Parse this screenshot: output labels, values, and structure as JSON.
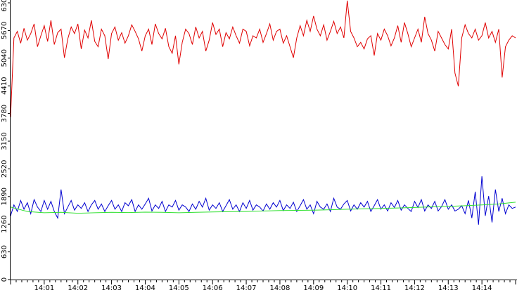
{
  "chart_data": {
    "type": "line",
    "title": "",
    "xlabel": "",
    "ylabel": "",
    "ylim": [
      0,
      6300
    ],
    "grid": false,
    "legend": "none",
    "y_ticks": [
      "0",
      "630",
      "1260",
      "1890",
      "2520",
      "3150",
      "3780",
      "4410",
      "5040",
      "5670",
      "6300"
    ],
    "x_ticks": [
      "14:01",
      "14:02",
      "14:03",
      "14:04",
      "14:05",
      "14:06",
      "14:07",
      "14:08",
      "14:09",
      "14:10",
      "14:11",
      "14:12",
      "14:13",
      "14:14"
    ],
    "x_range_minutes": [
      0.0,
      15.0
    ],
    "series": [
      {
        "color": "#e00000",
        "x": [
          0.0,
          0.1,
          0.2,
          0.3,
          0.4,
          0.5,
          0.6,
          0.7,
          0.8,
          0.9,
          1.0,
          1.1,
          1.2,
          1.3,
          1.4,
          1.5,
          1.6,
          1.7,
          1.8,
          1.9,
          2.0,
          2.1,
          2.2,
          2.3,
          2.4,
          2.5,
          2.6,
          2.7,
          2.8,
          2.9,
          3.0,
          3.1,
          3.2,
          3.3,
          3.4,
          3.5,
          3.6,
          3.7,
          3.8,
          3.9,
          4.0,
          4.1,
          4.2,
          4.3,
          4.4,
          4.5,
          4.6,
          4.7,
          4.8,
          4.9,
          5.0,
          5.1,
          5.2,
          5.3,
          5.4,
          5.5,
          5.6,
          5.7,
          5.8,
          5.9,
          6.0,
          6.1,
          6.2,
          6.3,
          6.4,
          6.5,
          6.6,
          6.7,
          6.8,
          6.9,
          7.0,
          7.1,
          7.2,
          7.3,
          7.4,
          7.5,
          7.6,
          7.7,
          7.8,
          7.9,
          8.0,
          8.1,
          8.2,
          8.3,
          8.4,
          8.5,
          8.6,
          8.7,
          8.8,
          8.9,
          9.0,
          9.1,
          9.2,
          9.3,
          9.4,
          9.5,
          9.6,
          9.7,
          9.8,
          9.9,
          10.0,
          10.1,
          10.2,
          10.3,
          10.4,
          10.5,
          10.6,
          10.7,
          10.8,
          10.9,
          11.0,
          11.1,
          11.2,
          11.3,
          11.4,
          11.5,
          11.6,
          11.7,
          11.8,
          11.9,
          12.0,
          12.1,
          12.2,
          12.3,
          12.4,
          12.5,
          12.6,
          12.7,
          12.8,
          12.9,
          13.0,
          13.1,
          13.2,
          13.3,
          13.4,
          13.5,
          13.6,
          13.7,
          13.8,
          13.9,
          14.0,
          14.1,
          14.2,
          14.3,
          14.4,
          14.5,
          14.6,
          14.7,
          14.8,
          14.9,
          15.0
        ],
        "values": [
          3700,
          5500,
          5650,
          5380,
          5720,
          5450,
          5600,
          5820,
          5300,
          5550,
          5780,
          5420,
          5900,
          5350,
          5620,
          5700,
          5050,
          5480,
          5750,
          5600,
          5820,
          5250,
          5680,
          5500,
          5900,
          5420,
          5300,
          5700,
          5550,
          5020,
          5600,
          5750,
          5450,
          5620,
          5380,
          5550,
          5800,
          5650,
          5480,
          5200,
          5550,
          5700,
          5350,
          5820,
          5600,
          5480,
          5720,
          5300,
          5150,
          5550,
          4900,
          5400,
          5700,
          5600,
          5350,
          5750,
          5500,
          5650,
          5200,
          5450,
          5850,
          5580,
          5700,
          5300,
          5620,
          5480,
          5750,
          5550,
          5380,
          5700,
          5650,
          5320,
          5550,
          5500,
          5700,
          5400,
          5600,
          5820,
          5450,
          5650,
          5700,
          5380,
          5550,
          5300,
          5050,
          5500,
          5780,
          5550,
          5900,
          5650,
          6000,
          5700,
          5550,
          5800,
          5450,
          5650,
          5880,
          5600,
          5750,
          5500,
          6350,
          5650,
          5500,
          5300,
          5400,
          5250,
          5480,
          5550,
          5100,
          5600,
          5450,
          5700,
          5550,
          5320,
          5500,
          5780,
          5400,
          5850,
          5600,
          5300,
          5500,
          5700,
          5400,
          5980,
          5600,
          5450,
          5200,
          5650,
          5500,
          5350,
          5250,
          5700,
          4700,
          4400,
          5500,
          5800,
          5600,
          5500,
          5700,
          5450,
          5550,
          5850,
          5500,
          5650,
          5400,
          5700,
          4600,
          5300,
          5450,
          5550,
          5500
        ]
      },
      {
        "color": "#0000d0",
        "x": [
          0.0,
          0.1,
          0.2,
          0.3,
          0.4,
          0.5,
          0.6,
          0.7,
          0.8,
          0.9,
          1.0,
          1.1,
          1.2,
          1.3,
          1.4,
          1.5,
          1.6,
          1.7,
          1.8,
          1.9,
          2.0,
          2.1,
          2.2,
          2.3,
          2.4,
          2.5,
          2.6,
          2.7,
          2.8,
          2.9,
          3.0,
          3.1,
          3.2,
          3.3,
          3.4,
          3.5,
          3.6,
          3.7,
          3.8,
          3.9,
          4.0,
          4.1,
          4.2,
          4.3,
          4.4,
          4.5,
          4.6,
          4.7,
          4.8,
          4.9,
          5.0,
          5.1,
          5.2,
          5.3,
          5.4,
          5.5,
          5.6,
          5.7,
          5.8,
          5.9,
          6.0,
          6.1,
          6.2,
          6.3,
          6.4,
          6.5,
          6.6,
          6.7,
          6.8,
          6.9,
          7.0,
          7.1,
          7.2,
          7.3,
          7.4,
          7.5,
          7.6,
          7.7,
          7.8,
          7.9,
          8.0,
          8.1,
          8.2,
          8.3,
          8.4,
          8.5,
          8.6,
          8.7,
          8.8,
          8.9,
          9.0,
          9.1,
          9.2,
          9.3,
          9.4,
          9.5,
          9.6,
          9.7,
          9.8,
          9.9,
          10.0,
          10.1,
          10.2,
          10.3,
          10.4,
          10.5,
          10.6,
          10.7,
          10.8,
          10.9,
          11.0,
          11.1,
          11.2,
          11.3,
          11.4,
          11.5,
          11.6,
          11.7,
          11.8,
          11.9,
          12.0,
          12.1,
          12.2,
          12.3,
          12.4,
          12.5,
          12.6,
          12.7,
          12.8,
          12.9,
          13.0,
          13.1,
          13.2,
          13.3,
          13.4,
          13.5,
          13.6,
          13.7,
          13.8,
          13.9,
          14.0,
          14.1,
          14.2,
          14.3,
          14.4,
          14.5,
          14.6,
          14.7,
          14.8,
          14.9,
          15.0
        ],
        "values": [
          1450,
          1700,
          1550,
          1800,
          1600,
          1750,
          1500,
          1820,
          1650,
          1550,
          1800,
          1600,
          1780,
          1550,
          1400,
          2050,
          1500,
          1650,
          1800,
          1580,
          1700,
          1620,
          1750,
          1550,
          1700,
          1800,
          1600,
          1720,
          1550,
          1680,
          1800,
          1600,
          1700,
          1550,
          1750,
          1680,
          1820,
          1550,
          1700,
          1600,
          1720,
          1850,
          1560,
          1700,
          1620,
          1780,
          1550,
          1700,
          1650,
          1800,
          1580,
          1700,
          1650,
          1550,
          1720,
          1600,
          1780,
          1650,
          1850,
          1580,
          1700,
          1620,
          1750,
          1550,
          1680,
          1820,
          1600,
          1700,
          1550,
          1750,
          1620,
          1800,
          1580,
          1700,
          1650,
          1560,
          1720,
          1600,
          1750,
          1650,
          1800,
          1570,
          1700,
          1620,
          1760,
          1550,
          1680,
          1820,
          1600,
          1700,
          1500,
          1780,
          1650,
          1600,
          1720,
          1550,
          1850,
          1650,
          1600,
          1720,
          1800,
          1560,
          1700,
          1600,
          1750,
          1650,
          1780,
          1550,
          1680,
          1820,
          1600,
          1700,
          1560,
          1750,
          1640,
          1800,
          1580,
          1700,
          1620,
          1550,
          1780,
          1640,
          1820,
          1560,
          1700,
          1620,
          1780,
          1560,
          1660,
          1820,
          1600,
          1700,
          1560,
          1600,
          1680,
          1500,
          1800,
          1400,
          2000,
          1250,
          2350,
          1450,
          1900,
          1300,
          2050,
          1550,
          1850,
          1500,
          1700,
          1620,
          1650
        ]
      },
      {
        "color": "#30e030",
        "x": [
          0.0,
          0.5,
          1.0,
          1.5,
          2.0,
          2.5,
          3.0,
          3.5,
          4.0,
          4.5,
          5.0,
          5.5,
          6.0,
          6.5,
          7.0,
          7.5,
          8.0,
          8.5,
          9.0,
          9.5,
          10.0,
          10.5,
          11.0,
          11.5,
          12.0,
          12.5,
          13.0,
          13.5,
          14.0,
          14.5,
          15.0
        ],
        "values": [
          1650,
          1550,
          1520,
          1530,
          1510,
          1520,
          1530,
          1525,
          1535,
          1530,
          1520,
          1530,
          1540,
          1545,
          1550,
          1560,
          1570,
          1575,
          1580,
          1590,
          1600,
          1610,
          1620,
          1630,
          1640,
          1655,
          1665,
          1680,
          1700,
          1720,
          1760
        ]
      }
    ]
  }
}
